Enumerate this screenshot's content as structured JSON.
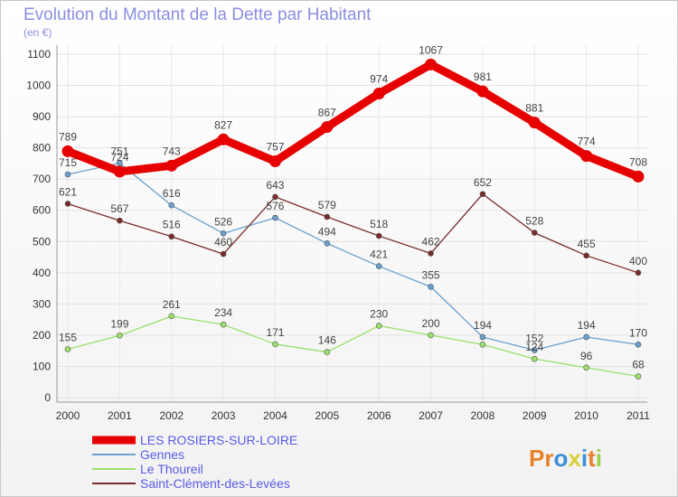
{
  "chart_data": {
    "type": "line",
    "title": "Evolution du Montant de la Dette par Habitant",
    "subtitle": "(en €)",
    "x": [
      "2000",
      "2001",
      "2002",
      "2003",
      "2004",
      "2005",
      "2006",
      "2007",
      "2008",
      "2009",
      "2010",
      "2011"
    ],
    "ylim": [
      0,
      1100
    ],
    "yticks": [
      0,
      100,
      200,
      300,
      400,
      500,
      600,
      700,
      800,
      900,
      1000,
      1100
    ],
    "grid": true,
    "legend_position": "bottom-left",
    "series": [
      {
        "name": "LES ROSIERS-SUR-LOIRE",
        "color": "#e60000",
        "values": [
          789,
          724,
          743,
          827,
          757,
          867,
          974,
          1067,
          981,
          881,
          774,
          708
        ]
      },
      {
        "name": "Gennes",
        "color": "#6aa0cf",
        "values": [
          715,
          751,
          616,
          526,
          576,
          494,
          421,
          355,
          194,
          152,
          194,
          170
        ]
      },
      {
        "name": "Le Thoureil",
        "color": "#9be06a",
        "values": [
          155,
          199,
          261,
          234,
          171,
          146,
          230,
          200,
          170,
          124,
          96,
          68
        ]
      },
      {
        "name": "Saint-Clément-des-Levées",
        "color": "#7a2a2a",
        "values": [
          621,
          567,
          516,
          460,
          643,
          579,
          518,
          462,
          652,
          528,
          455,
          400
        ]
      }
    ],
    "data_labels": [
      {
        "series": 0,
        "labels": [
          "789",
          "724",
          "743",
          "827",
          "757",
          "867",
          "974",
          "1067",
          "981",
          "881",
          "774",
          "708"
        ]
      },
      {
        "series": 1,
        "labels": [
          "715",
          "751",
          "616",
          "526",
          "576",
          "494",
          "421",
          "355",
          "194",
          "152",
          "194",
          "170"
        ]
      },
      {
        "series": 2,
        "labels": [
          "155",
          "199",
          "261",
          "234",
          "171",
          "146",
          "230",
          "200",
          "",
          "124",
          "96",
          "68"
        ]
      },
      {
        "series": 3,
        "labels": [
          "621",
          "567",
          "516",
          "460",
          "643",
          "579",
          "518",
          "462",
          "652",
          "528",
          "455",
          "400"
        ]
      }
    ]
  },
  "logo": {
    "text": "Proxiti"
  }
}
